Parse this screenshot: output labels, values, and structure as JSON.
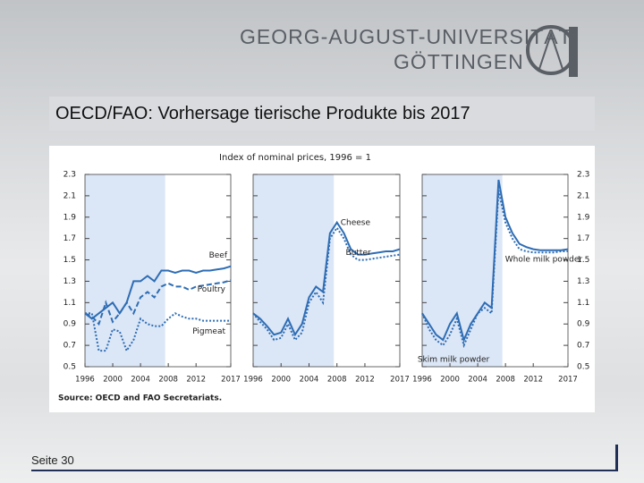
{
  "header": {
    "university": "GEORG-AUGUST-UNIVERSITÄT",
    "city": "GÖTTINGEN",
    "title": "OECD/FAO: Vorhersage tierische Produkte bis 2017"
  },
  "footer": {
    "page": "Seite 30"
  },
  "figure": {
    "title": "Index of nominal prices, 1996 = 1",
    "source": "Source: OECD and FAO Secretariats."
  },
  "chart_data": [
    {
      "type": "line",
      "x": [
        1996,
        1997,
        1998,
        1999,
        2000,
        2001,
        2002,
        2003,
        2004,
        2005,
        2006,
        2007,
        2008,
        2009,
        2010,
        2011,
        2012,
        2013,
        2014,
        2015,
        2016,
        2017
      ],
      "xlim": [
        1996,
        2017
      ],
      "xticks": [
        1996,
        2000,
        2004,
        2008,
        2012,
        2017
      ],
      "ylim": [
        0.5,
        2.3
      ],
      "yticks": [
        0.5,
        0.7,
        0.9,
        1.1,
        1.3,
        1.5,
        1.7,
        1.9,
        2.1,
        2.3
      ],
      "series": [
        {
          "name": "Beef",
          "color": "#2e6db4",
          "dash": "solid",
          "values": [
            1.0,
            0.95,
            1.0,
            1.05,
            1.1,
            1.0,
            1.1,
            1.3,
            1.3,
            1.35,
            1.3,
            1.4,
            1.4,
            1.38,
            1.4,
            1.4,
            1.38,
            1.4,
            1.4,
            1.41,
            1.42,
            1.44
          ]
        },
        {
          "name": "Poultry",
          "color": "#2e6db4",
          "dash": "dashed",
          "values": [
            1.0,
            0.97,
            0.9,
            1.1,
            0.92,
            1.0,
            1.1,
            1.0,
            1.15,
            1.2,
            1.15,
            1.25,
            1.28,
            1.25,
            1.25,
            1.22,
            1.25,
            1.26,
            1.27,
            1.28,
            1.29,
            1.31
          ]
        },
        {
          "name": "Pigmeat",
          "color": "#2e6db4",
          "dash": "dotted",
          "values": [
            1.0,
            1.0,
            0.65,
            0.65,
            0.85,
            0.83,
            0.65,
            0.75,
            0.95,
            0.9,
            0.88,
            0.88,
            0.95,
            1.0,
            0.97,
            0.95,
            0.95,
            0.93,
            0.93,
            0.93,
            0.93,
            0.93
          ]
        }
      ]
    },
    {
      "type": "line",
      "x": [
        1996,
        1997,
        1998,
        1999,
        2000,
        2001,
        2002,
        2003,
        2004,
        2005,
        2006,
        2007,
        2008,
        2009,
        2010,
        2011,
        2012,
        2013,
        2014,
        2015,
        2016,
        2017
      ],
      "xlim": [
        1996,
        2017
      ],
      "xticks": [
        1996,
        2000,
        2004,
        2008,
        2012,
        2017
      ],
      "ylim": [
        0.5,
        2.3
      ],
      "yticks": [
        0.5,
        0.7,
        0.9,
        1.1,
        1.3,
        1.5,
        1.7,
        1.9,
        2.1,
        2.3
      ],
      "series": [
        {
          "name": "Cheese",
          "color": "#2e6db4",
          "dash": "solid",
          "values": [
            1.0,
            0.95,
            0.88,
            0.8,
            0.82,
            0.95,
            0.8,
            0.9,
            1.15,
            1.25,
            1.2,
            1.75,
            1.85,
            1.75,
            1.6,
            1.55,
            1.55,
            1.56,
            1.57,
            1.58,
            1.58,
            1.6
          ]
        },
        {
          "name": "Butter",
          "color": "#2e6db4",
          "dash": "dotted",
          "values": [
            1.0,
            0.92,
            0.85,
            0.75,
            0.77,
            0.9,
            0.75,
            0.82,
            1.1,
            1.2,
            1.1,
            1.7,
            1.8,
            1.7,
            1.55,
            1.5,
            1.5,
            1.51,
            1.52,
            1.53,
            1.54,
            1.55
          ]
        }
      ]
    },
    {
      "type": "line",
      "x": [
        1996,
        1997,
        1998,
        1999,
        2000,
        2001,
        2002,
        2003,
        2004,
        2005,
        2006,
        2007,
        2008,
        2009,
        2010,
        2011,
        2012,
        2013,
        2014,
        2015,
        2016,
        2017
      ],
      "xlim": [
        1996,
        2017
      ],
      "xticks": [
        1996,
        2000,
        2004,
        2008,
        2012,
        2017
      ],
      "ylim": [
        0.5,
        2.3
      ],
      "yticks": [
        0.5,
        0.7,
        0.9,
        1.1,
        1.3,
        1.5,
        1.7,
        1.9,
        2.1,
        2.3
      ],
      "series": [
        {
          "name": "Whole milk powder",
          "color": "#2e6db4",
          "dash": "solid",
          "values": [
            1.0,
            0.9,
            0.8,
            0.75,
            0.9,
            1.0,
            0.75,
            0.9,
            1.0,
            1.1,
            1.05,
            2.25,
            1.9,
            1.75,
            1.65,
            1.62,
            1.6,
            1.59,
            1.59,
            1.59,
            1.59,
            1.6
          ]
        },
        {
          "name": "Skim milk powder",
          "color": "#2e6db4",
          "dash": "dotted",
          "values": [
            1.0,
            0.85,
            0.75,
            0.7,
            0.8,
            0.95,
            0.7,
            0.85,
            1.0,
            1.05,
            1.0,
            2.15,
            1.85,
            1.7,
            1.6,
            1.58,
            1.57,
            1.57,
            1.57,
            1.57,
            1.58,
            1.58
          ]
        }
      ]
    }
  ]
}
